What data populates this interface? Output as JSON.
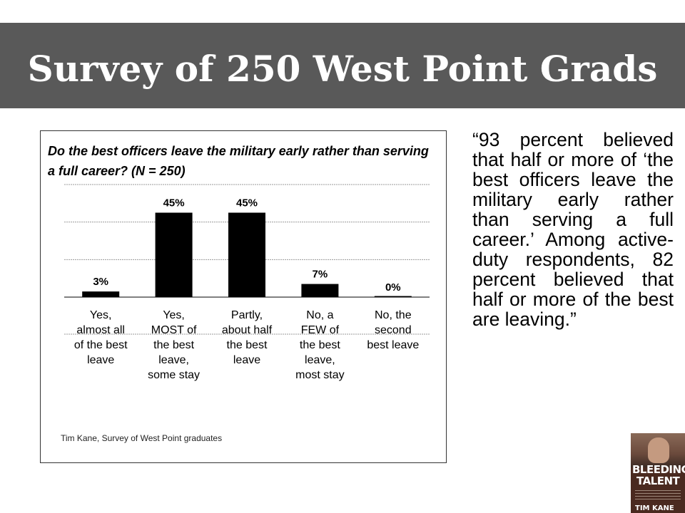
{
  "slide": {
    "title": "Survey of 250 West Point Grads",
    "quote": "“93 percent believed that half or more of ‘the best officers leave the military early rather than serving a full career.’ Among active-duty respondents, 82 percent believed that half or more of the best are leaving.”",
    "source": "Tim Kane, Survey of West Point graduates",
    "book": {
      "title_line1": "BLEEDING",
      "title_line2": "TALENT",
      "author": "TIM KANE"
    }
  },
  "chart_data": {
    "type": "bar",
    "title": "Do the best officers leave the military early rather than serving a full career? (N = 250)",
    "categories": [
      "Yes, almost all of the best leave",
      "Yes, MOST of the best leave, some stay",
      "Partly, about half the best leave",
      "No, a FEW of the best leave, most stay",
      "No, the second best leave"
    ],
    "category_lines": [
      [
        "Yes,",
        "almost all",
        "of the best",
        "leave"
      ],
      [
        "Yes,",
        "MOST of",
        "the best",
        "leave,",
        "some stay"
      ],
      [
        "Partly,",
        "about half",
        "the best",
        "leave"
      ],
      [
        "No, a",
        "FEW of",
        "the best",
        "leave,",
        "most stay"
      ],
      [
        "No, the",
        "second",
        "best leave"
      ]
    ],
    "values": [
      3,
      45,
      45,
      7,
      0
    ],
    "data_labels": [
      "3%",
      "45%",
      "45%",
      "7%",
      "0%"
    ],
    "ylim": [
      0,
      60
    ],
    "grid": true,
    "bar_color": "#000000"
  }
}
